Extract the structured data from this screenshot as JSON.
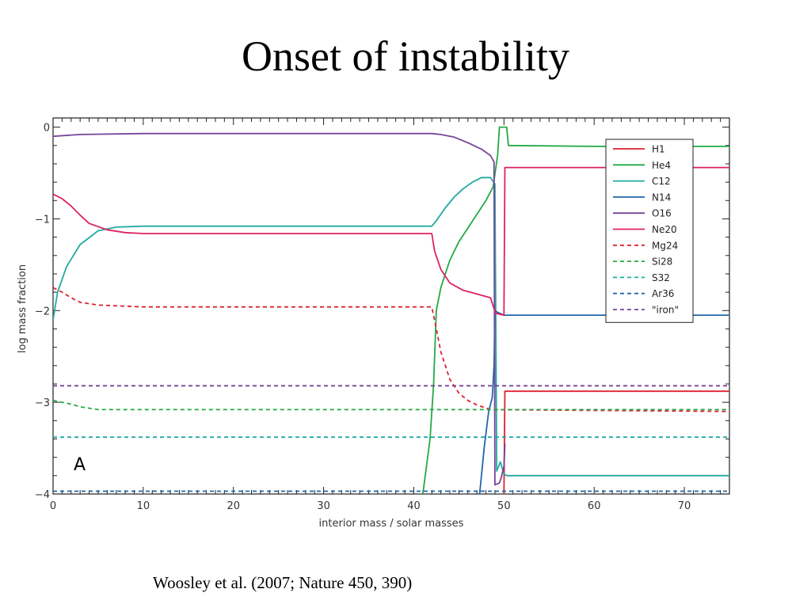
{
  "slide": {
    "title": "Onset of instability",
    "caption": "Woosley et al. (2007; Nature 450, 390)"
  },
  "chart_data": {
    "type": "line",
    "xlabel": "interior mass / solar masses",
    "ylabel": "log mass fraction",
    "xlim": [
      0,
      75
    ],
    "ylim": [
      -4.0,
      0.1
    ],
    "xticks": [
      "0",
      "10",
      "20",
      "30",
      "40",
      "50",
      "60",
      "70"
    ],
    "yticks": [
      "0",
      "−1",
      "−2",
      "−3",
      "−4"
    ],
    "panel_label": "A",
    "legend_position": "top-right",
    "series": [
      {
        "name": "H1",
        "color": "#dd2233",
        "dash": "solid",
        "points": [
          [
            50.0,
            -4.0
          ],
          [
            50.1,
            -2.88
          ],
          [
            75,
            -2.88
          ]
        ]
      },
      {
        "name": "He4",
        "color": "#22aa44",
        "dash": "solid",
        "points": [
          [
            41.0,
            -4.0
          ],
          [
            41.8,
            -3.4
          ],
          [
            42.2,
            -2.8
          ],
          [
            42.5,
            -2.0
          ],
          [
            43.0,
            -1.75
          ],
          [
            44.0,
            -1.45
          ],
          [
            45.0,
            -1.25
          ],
          [
            46.0,
            -1.1
          ],
          [
            47.0,
            -0.95
          ],
          [
            48.0,
            -0.8
          ],
          [
            48.8,
            -0.65
          ],
          [
            49.3,
            -0.3
          ],
          [
            49.5,
            0.0
          ],
          [
            50.3,
            0.0
          ],
          [
            50.5,
            -0.2
          ],
          [
            60.0,
            -0.21
          ],
          [
            75,
            -0.21
          ]
        ]
      },
      {
        "name": "C12",
        "color": "#22aaa0",
        "dash": "solid",
        "points": [
          [
            0,
            -2.1
          ],
          [
            0.5,
            -1.8
          ],
          [
            1.5,
            -1.52
          ],
          [
            3,
            -1.28
          ],
          [
            5,
            -1.13
          ],
          [
            7,
            -1.09
          ],
          [
            10,
            -1.08
          ],
          [
            42.0,
            -1.08
          ],
          [
            42.5,
            -1.02
          ],
          [
            43.5,
            -0.88
          ],
          [
            44.5,
            -0.76
          ],
          [
            45.5,
            -0.67
          ],
          [
            46.5,
            -0.6
          ],
          [
            47.5,
            -0.55
          ],
          [
            48.5,
            -0.55
          ],
          [
            49.0,
            -0.62
          ],
          [
            49.2,
            -3.75
          ],
          [
            49.6,
            -3.65
          ],
          [
            50.0,
            -3.78
          ],
          [
            50.3,
            -3.8
          ],
          [
            75,
            -3.8
          ]
        ]
      },
      {
        "name": "N14",
        "color": "#2266aa",
        "dash": "solid",
        "points": [
          [
            47.3,
            -4.0
          ],
          [
            47.8,
            -3.5
          ],
          [
            48.3,
            -3.1
          ],
          [
            48.7,
            -2.95
          ],
          [
            48.9,
            -2.6
          ],
          [
            49.0,
            -2.0
          ],
          [
            49.3,
            -2.02
          ],
          [
            50.0,
            -2.05
          ],
          [
            60.0,
            -2.05
          ],
          [
            75,
            -2.05
          ]
        ]
      },
      {
        "name": "O16",
        "color": "#774499",
        "dash": "solid",
        "points": [
          [
            0,
            -0.1
          ],
          [
            3,
            -0.08
          ],
          [
            10,
            -0.07
          ],
          [
            42.0,
            -0.07
          ],
          [
            43.0,
            -0.08
          ],
          [
            44.5,
            -0.11
          ],
          [
            46.0,
            -0.17
          ],
          [
            47.5,
            -0.24
          ],
          [
            48.5,
            -0.31
          ],
          [
            48.9,
            -0.38
          ],
          [
            49.0,
            -3.9
          ],
          [
            49.5,
            -3.88
          ],
          [
            49.7,
            -3.82
          ],
          [
            50.0,
            -3.7
          ],
          [
            50.1,
            -3.45
          ]
        ]
      },
      {
        "name": "Ne20",
        "color": "#dd2266",
        "dash": "solid",
        "points": [
          [
            0,
            -0.73
          ],
          [
            1,
            -0.78
          ],
          [
            2,
            -0.86
          ],
          [
            3,
            -0.96
          ],
          [
            4,
            -1.05
          ],
          [
            6,
            -1.12
          ],
          [
            8,
            -1.15
          ],
          [
            10,
            -1.16
          ],
          [
            42.0,
            -1.16
          ],
          [
            42.3,
            -1.35
          ],
          [
            43.0,
            -1.55
          ],
          [
            44.0,
            -1.7
          ],
          [
            45.5,
            -1.78
          ],
          [
            47.0,
            -1.82
          ],
          [
            48.5,
            -1.86
          ],
          [
            48.9,
            -1.98
          ],
          [
            49.1,
            -2.03
          ],
          [
            49.5,
            -2.04
          ],
          [
            50.0,
            -2.05
          ],
          [
            50.1,
            -0.44
          ],
          [
            75,
            -0.44
          ]
        ]
      },
      {
        "name": "Mg24",
        "color": "#dd2233",
        "dash": "dashed",
        "points": [
          [
            0,
            -1.75
          ],
          [
            1,
            -1.8
          ],
          [
            2,
            -1.86
          ],
          [
            3,
            -1.91
          ],
          [
            5,
            -1.94
          ],
          [
            10,
            -1.96
          ],
          [
            42.0,
            -1.96
          ],
          [
            42.4,
            -2.15
          ],
          [
            43.0,
            -2.45
          ],
          [
            44.0,
            -2.75
          ],
          [
            45.0,
            -2.9
          ],
          [
            46.0,
            -2.98
          ],
          [
            47.0,
            -3.03
          ],
          [
            48.5,
            -3.08
          ],
          [
            75,
            -3.1
          ]
        ]
      },
      {
        "name": "Si28",
        "color": "#22aa44",
        "dash": "dashed",
        "points": [
          [
            0,
            -2.98
          ],
          [
            1,
            -3.0
          ],
          [
            2,
            -3.02
          ],
          [
            3,
            -3.05
          ],
          [
            5,
            -3.08
          ],
          [
            10,
            -3.08
          ],
          [
            75,
            -3.08
          ]
        ]
      },
      {
        "name": "S32",
        "color": "#22aaa0",
        "dash": "dashed",
        "points": [
          [
            0,
            -3.38
          ],
          [
            75,
            -3.38
          ]
        ]
      },
      {
        "name": "Ar36",
        "color": "#2266aa",
        "dash": "dashed",
        "points": [
          [
            0,
            -3.97
          ],
          [
            75,
            -3.97
          ]
        ]
      },
      {
        "name": "\"iron\"",
        "color": "#774499",
        "dash": "dashed",
        "points": [
          [
            0,
            -2.82
          ],
          [
            75,
            -2.82
          ]
        ]
      }
    ]
  }
}
